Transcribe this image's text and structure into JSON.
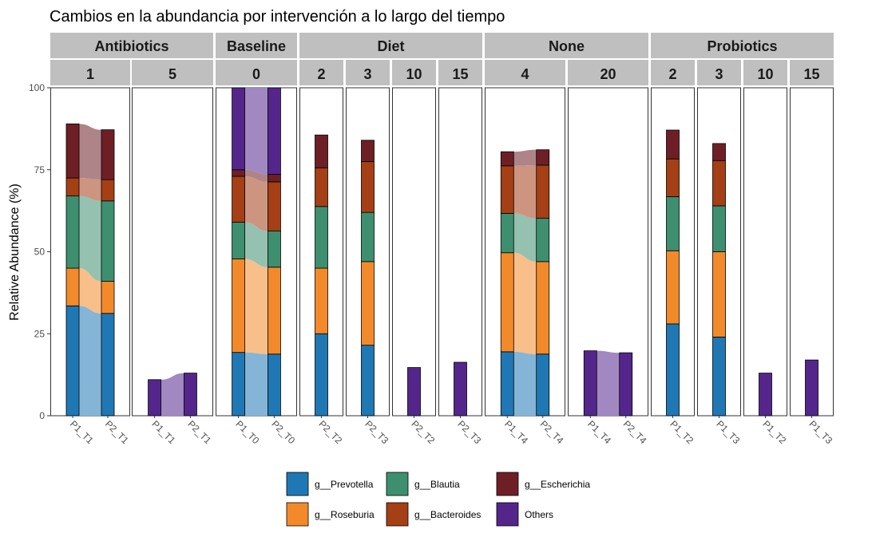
{
  "chart_data": {
    "type": "bar",
    "title": "Cambios en la abundancia por intervención a lo largo del tiempo",
    "ylabel": "Relative Abundance (%)",
    "xlabel": "",
    "ylim": [
      0,
      100
    ],
    "yticks": [
      0,
      25,
      50,
      75,
      100
    ],
    "grid": false,
    "legend_position": "bottom",
    "stacked": true,
    "series": [
      {
        "name": "g__Prevotella",
        "color": "#1f78b4"
      },
      {
        "name": "g__Roseburia",
        "color": "#f28a2b"
      },
      {
        "name": "g__Blautia",
        "color": "#3d8f6f"
      },
      {
        "name": "g__Bacteroides",
        "color": "#a43f16"
      },
      {
        "name": "g__Escherichia",
        "color": "#6e1f26"
      },
      {
        "name": "Others",
        "color": "#54268c"
      }
    ],
    "facets": [
      {
        "group": "Antibiotics",
        "time": "1",
        "bars": [
          {
            "label": "P1_T1",
            "values": [
              33.5,
              11.5,
              22,
              5.5,
              16.5,
              0
            ]
          },
          {
            "label": "P2_T1",
            "values": [
              31.2,
              9.8,
              24.5,
              6.5,
              15.2,
              0
            ]
          }
        ]
      },
      {
        "group": "Antibiotics",
        "time": "5",
        "bars": [
          {
            "label": "P1_T1",
            "values": [
              0,
              0,
              0,
              0,
              0,
              11
            ]
          },
          {
            "label": "P2_T1",
            "values": [
              0,
              0,
              0,
              0,
              0,
              13
            ]
          }
        ]
      },
      {
        "group": "Baseline",
        "time": "0",
        "bars": [
          {
            "label": "P1_T0",
            "values": [
              19.3,
              28.5,
              11.2,
              14,
              2,
              25
            ]
          },
          {
            "label": "P2_T0",
            "values": [
              18.8,
              26.5,
              11,
              15,
              2.3,
              26.4
            ]
          }
        ]
      },
      {
        "group": "Diet",
        "time": "2",
        "bars": [
          {
            "label": "P2_T2",
            "values": [
              25,
              20,
              18.8,
              11.8,
              10,
              0
            ]
          }
        ]
      },
      {
        "group": "Diet",
        "time": "3",
        "bars": [
          {
            "label": "P2_T3",
            "values": [
              21.5,
              25.5,
              15,
              15.5,
              6.5,
              0
            ]
          }
        ]
      },
      {
        "group": "Diet",
        "time": "10",
        "bars": [
          {
            "label": "P2_T2",
            "values": [
              0,
              0,
              0,
              0,
              0,
              14.7
            ]
          }
        ]
      },
      {
        "group": "Diet",
        "time": "15",
        "bars": [
          {
            "label": "P2_T3",
            "values": [
              0,
              0,
              0,
              0,
              0,
              16.3
            ]
          }
        ]
      },
      {
        "group": "None",
        "time": "4",
        "bars": [
          {
            "label": "P1_T4",
            "values": [
              19.5,
              30.2,
              12,
              14.5,
              4.3,
              0
            ]
          },
          {
            "label": "P2_T4",
            "values": [
              18.8,
              28.2,
              13.2,
              16.2,
              4.7,
              0
            ]
          }
        ]
      },
      {
        "group": "None",
        "time": "20",
        "bars": [
          {
            "label": "P1_T4",
            "values": [
              0,
              0,
              0,
              0,
              0,
              19.8
            ]
          },
          {
            "label": "P2_T4",
            "values": [
              0,
              0,
              0,
              0,
              0,
              19.2
            ]
          }
        ]
      },
      {
        "group": "Probiotics",
        "time": "2",
        "bars": [
          {
            "label": "P1_T2",
            "values": [
              28,
              22.3,
              16.5,
              11.5,
              8.8,
              0
            ]
          }
        ]
      },
      {
        "group": "Probiotics",
        "time": "3",
        "bars": [
          {
            "label": "P1_T3",
            "values": [
              24,
              26,
              14,
              13.8,
              5.2,
              0
            ]
          }
        ]
      },
      {
        "group": "Probiotics",
        "time": "10",
        "bars": [
          {
            "label": "P1_T2",
            "values": [
              0,
              0,
              0,
              0,
              0,
              13
            ]
          }
        ]
      },
      {
        "group": "Probiotics",
        "time": "15",
        "bars": [
          {
            "label": "P1_T3",
            "values": [
              0,
              0,
              0,
              0,
              0,
              17
            ]
          }
        ]
      }
    ]
  }
}
